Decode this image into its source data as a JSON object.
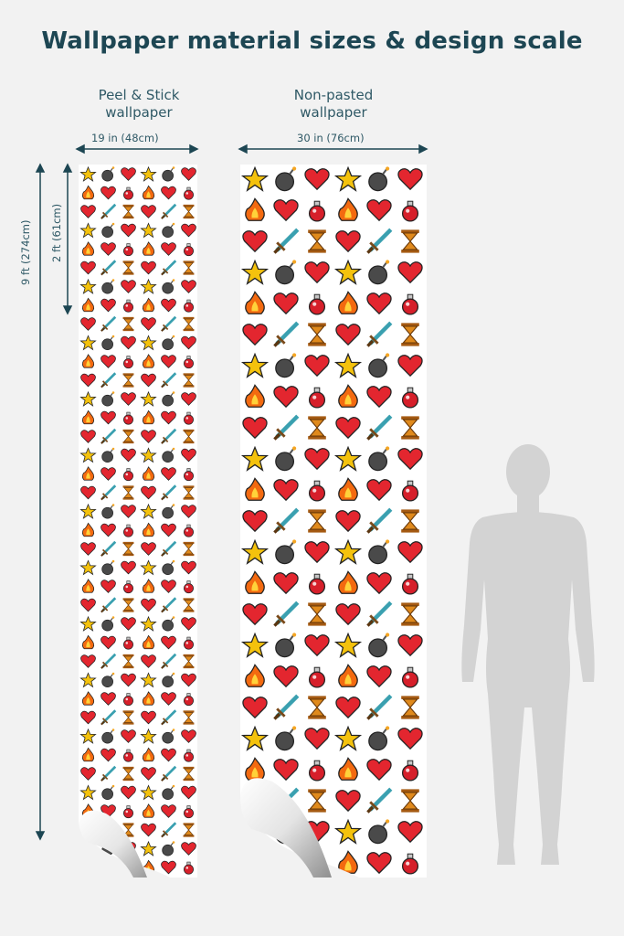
{
  "title": "Wallpaper material sizes & design scale",
  "panels": {
    "peel_stick": {
      "label_line1": "Peel & Stick",
      "label_line2": "wallpaper",
      "width_label": "19 in (48cm)"
    },
    "non_pasted": {
      "label_line1": "Non-pasted",
      "label_line2": "wallpaper",
      "width_label": "30 in (76cm)"
    }
  },
  "height_labels": {
    "total": "9 ft (274cm)",
    "repeat": "2 ft (61cm)"
  },
  "pattern": {
    "icons": [
      "star-icon",
      "bomb-icon",
      "heart-icon",
      "fire-icon",
      "potion-icon",
      "sword-icon",
      "hourglass-icon"
    ],
    "colors": {
      "star": "#f4c20d",
      "heart": "#e3262f",
      "bomb": "#4a4a4a",
      "sword": "#3aa0b0",
      "hourglass": "#e08a1c",
      "fire": "#f36a10",
      "potion": "#d61f2a"
    }
  },
  "colors": {
    "background": "#f2f2f2",
    "title": "#1d4653",
    "silhouette": "#d3d3d3"
  }
}
